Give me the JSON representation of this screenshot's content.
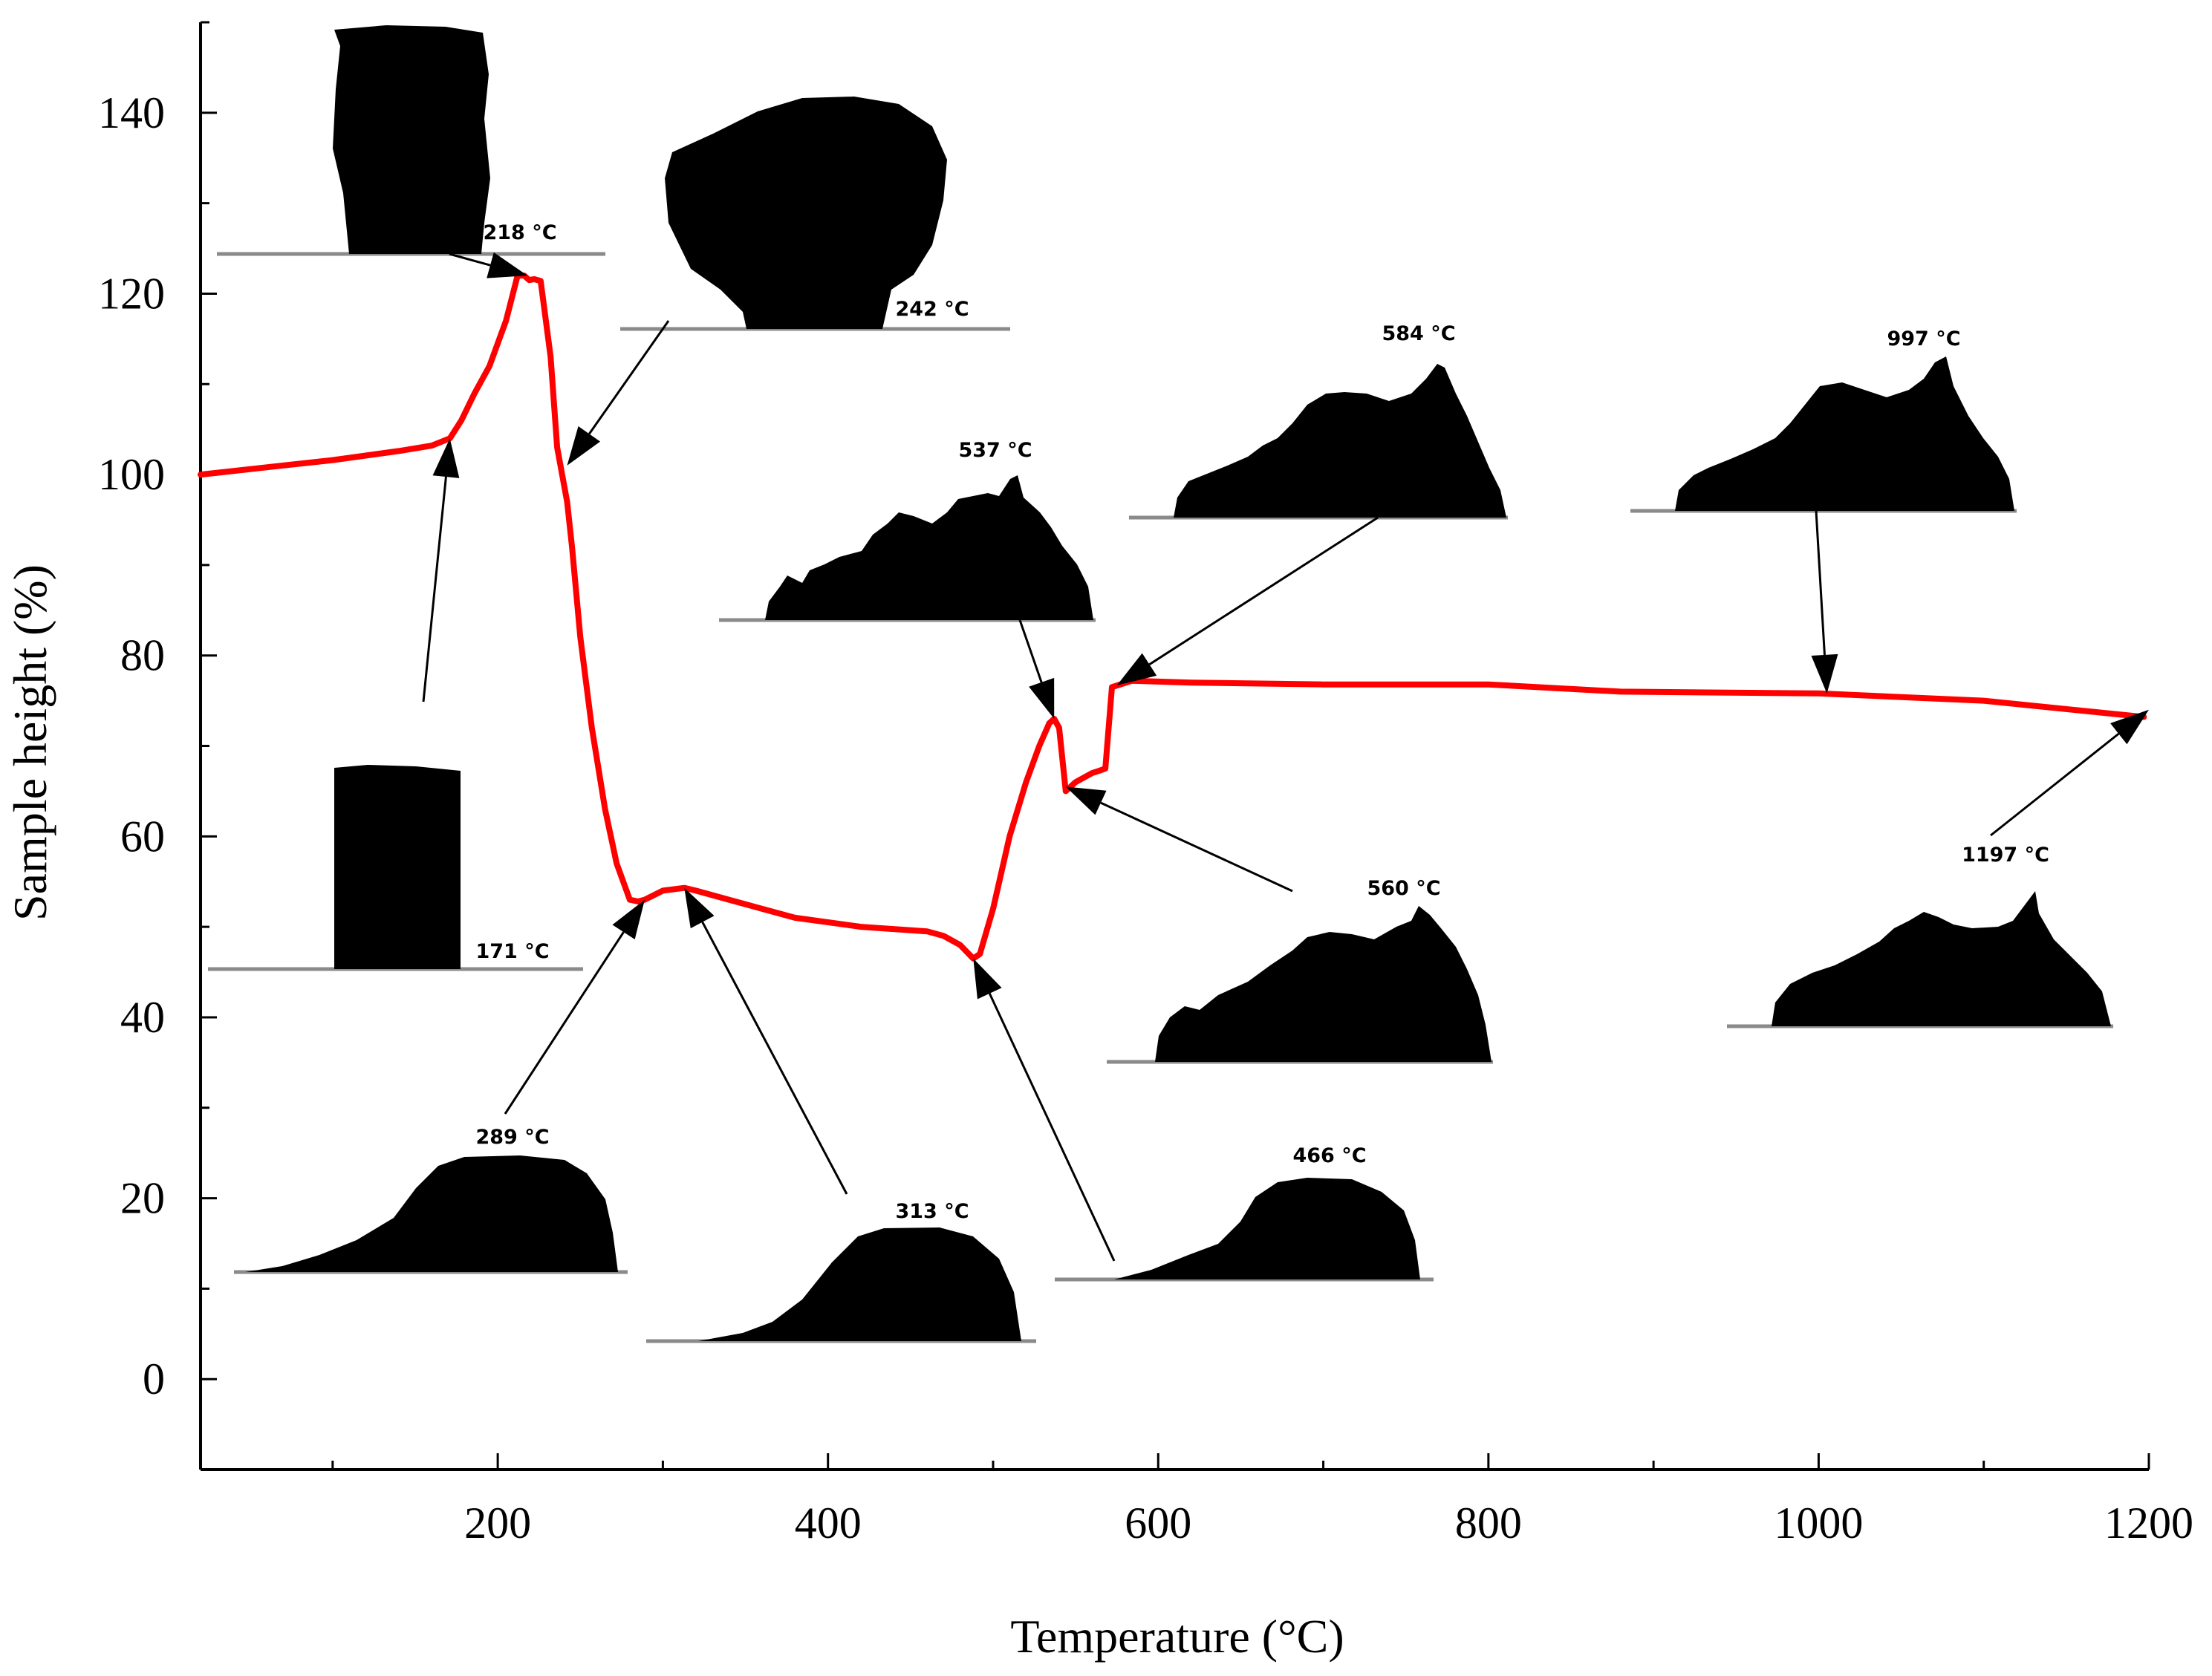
{
  "chart_data": {
    "type": "line",
    "title": "",
    "xlabel": "Temperature (°C)",
    "ylabel": "Sample height (%)",
    "xlim": [
      20,
      1200
    ],
    "ylim": [
      -10,
      150
    ],
    "x_ticks": [
      200,
      400,
      600,
      800,
      1000,
      1200
    ],
    "y_ticks": [
      0,
      20,
      40,
      60,
      80,
      100,
      120,
      140
    ],
    "grid": false,
    "series_color": "#ff0000",
    "series": [
      {
        "x": [
          20,
          60,
          100,
          140,
          160,
          171,
          178,
          186,
          195,
          205,
          212,
          216,
          219,
          222,
          226,
          232,
          236,
          239,
          242,
          245,
          250,
          257,
          265,
          272,
          280,
          285,
          289,
          300,
          313,
          320,
          340,
          380,
          420,
          460,
          470,
          480,
          488,
          492,
          500,
          510,
          520,
          528,
          534,
          537,
          540,
          544,
          550,
          560,
          565,
          568,
          572,
          584,
          620,
          700,
          800,
          880,
          1000,
          1100,
          1197
        ],
        "y": [
          100,
          100.8,
          101.6,
          102.6,
          103.2,
          104,
          106,
          109,
          112,
          117,
          122,
          122,
          121.5,
          121.6,
          121.4,
          113,
          103,
          100,
          97,
          92,
          82,
          72,
          63,
          57,
          53,
          52.8,
          53,
          54,
          54.3,
          54,
          53,
          51,
          50,
          49.5,
          49,
          48,
          46.5,
          47,
          52,
          60,
          66,
          70,
          72.5,
          73,
          72,
          65,
          66,
          67,
          67.3,
          67.5,
          76.5,
          77.2,
          77,
          76.8,
          76.8,
          76,
          75.8,
          75,
          73.2
        ]
      }
    ],
    "annotations": [
      {
        "label": "171 °C",
        "x": 171,
        "y": 104
      },
      {
        "label": "218 °C",
        "x": 218,
        "y": 122
      },
      {
        "label": "242 °C",
        "x": 242,
        "y": 101
      },
      {
        "label": "289 °C",
        "x": 289,
        "y": 53
      },
      {
        "label": "313 °C",
        "x": 313,
        "y": 54.3
      },
      {
        "label": "466 °C",
        "x": 488,
        "y": 46.5
      },
      {
        "label": "537 °C",
        "x": 537,
        "y": 73
      },
      {
        "label": "560 °C",
        "x": 544,
        "y": 65.5
      },
      {
        "label": "584 °C",
        "x": 575,
        "y": 76.7
      },
      {
        "label": "997 °C",
        "x": 1005,
        "y": 75.8
      },
      {
        "label": "1197 °C",
        "x": 1200,
        "y": 74
      }
    ]
  }
}
